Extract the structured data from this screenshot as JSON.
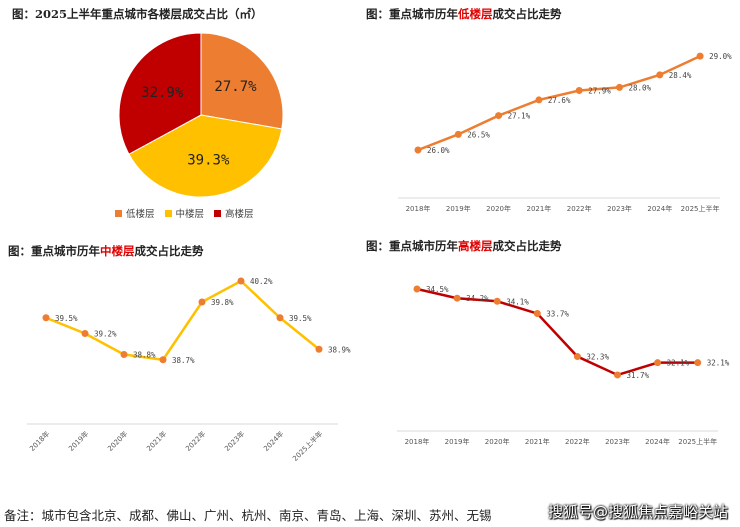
{
  "chart_data": [
    {
      "type": "pie",
      "title": "图：2025上半年重点城市各楼层成交占比（㎡）",
      "categories": [
        "低楼层",
        "中楼层",
        "高楼层"
      ],
      "values": [
        27.7,
        39.3,
        32.9
      ],
      "labels": [
        "27.7%",
        "39.3%",
        "32.9%"
      ],
      "colors": [
        "#ed7d31",
        "#ffc000",
        "#c00000"
      ],
      "legend": "bottom"
    },
    {
      "type": "line",
      "title_prefix": "图：重点城市历年",
      "title_highlight": "低楼层",
      "title_suffix": "成交占比走势",
      "categories": [
        "2018年",
        "2019年",
        "2020年",
        "2021年",
        "2022年",
        "2023年",
        "2024年",
        "2025上半年"
      ],
      "values": [
        26.0,
        26.5,
        27.1,
        27.6,
        27.9,
        28.0,
        28.4,
        29.0
      ],
      "labels": [
        "26.0%",
        "26.5%",
        "27.1%",
        "27.6%",
        "27.9%",
        "28.0%",
        "28.4%",
        "29.0%"
      ],
      "line_color": "#ed7d31",
      "marker_color": "#ed7d31"
    },
    {
      "type": "line",
      "title_prefix": "图：重点城市历年",
      "title_highlight": "中楼层",
      "title_suffix": "成交占比走势",
      "categories": [
        "2018年",
        "2019年",
        "2020年",
        "2021年",
        "2022年",
        "2023年",
        "2024年",
        "2025上半年"
      ],
      "values": [
        39.5,
        39.2,
        38.8,
        38.7,
        39.8,
        40.2,
        39.5,
        38.9
      ],
      "labels": [
        "39.5%",
        "39.2%",
        "38.8%",
        "38.7%",
        "39.8%",
        "40.2%",
        "39.5%",
        "38.9%"
      ],
      "line_color": "#ffc000",
      "marker_color": "#ed7d31"
    },
    {
      "type": "line",
      "title_prefix": "图：重点城市历年",
      "title_highlight": "高楼层",
      "title_suffix": "成交占比走势",
      "categories": [
        "2018年",
        "2019年",
        "2020年",
        "2021年",
        "2022年",
        "2023年",
        "2024年",
        "2025上半年"
      ],
      "values": [
        34.5,
        34.2,
        34.1,
        33.7,
        32.3,
        31.7,
        32.1,
        32.1
      ],
      "labels": [
        "34.5%",
        "34.2%",
        "34.1%",
        "33.7%",
        "32.3%",
        "31.7%",
        "32.1%",
        "32.1%"
      ],
      "line_color": "#c00000",
      "marker_color": "#ed7d31"
    }
  ],
  "footer": "备注：城市包含北京、成都、佛山、广州、杭州、南京、青岛、上海、深圳、苏州、无锡",
  "watermark": "搜狐号@搜狐焦点嘉峪关站"
}
